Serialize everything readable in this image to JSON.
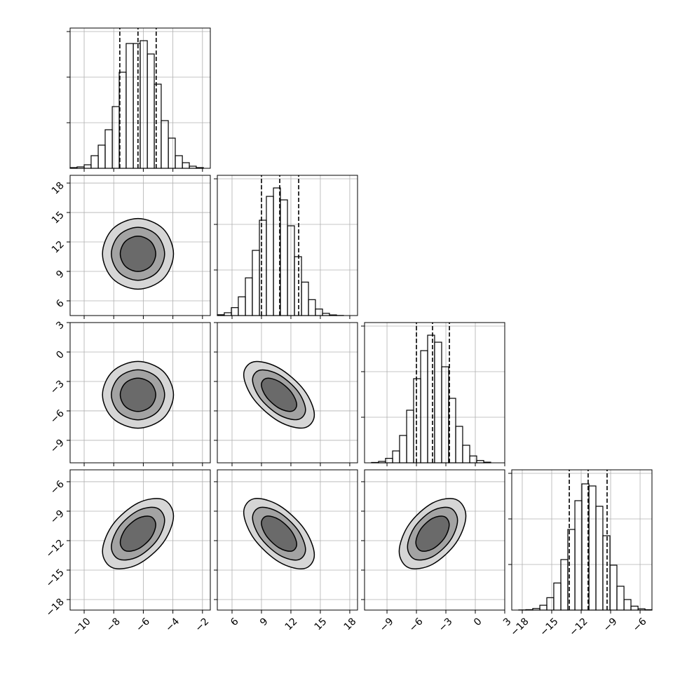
{
  "chart_data": [
    {
      "type": "histogram",
      "xlim": [
        -10.95,
        -1.47
      ],
      "xticks": [
        -10,
        -8,
        -6,
        -4,
        -2
      ],
      "ylim": [
        0,
        3077
      ],
      "yticks": [
        1000,
        2000,
        3000
      ],
      "grid": true,
      "bins": [
        -10.95,
        -10.48,
        -10.0,
        -9.53,
        -9.05,
        -8.58,
        -8.1,
        -7.63,
        -7.16,
        -6.68,
        -6.21,
        -5.73,
        -5.26,
        -4.79,
        -4.31,
        -3.84,
        -3.36,
        -2.89,
        -2.42,
        -1.94,
        -1.47
      ],
      "counts": [
        15,
        31,
        77,
        277,
        508,
        846,
        1354,
        2108,
        2738,
        2738,
        2800,
        2508,
        1846,
        1046,
        662,
        277,
        123,
        46,
        15,
        0
      ],
      "quantiles": [
        -7.59,
        -6.36,
        -5.13
      ]
    },
    {
      "type": "contour",
      "xlim": [
        -10.95,
        -1.47
      ],
      "xticks": [
        -10,
        -8,
        -6,
        -4,
        -2
      ],
      "ylim": [
        4.5,
        18.79
      ],
      "yticks": [
        6,
        9,
        12,
        15,
        18
      ],
      "grid": true,
      "contours": [
        {
          "x": [
            -3.96,
            -4.66,
            -6.36,
            -8.06,
            -8.76,
            -8.06,
            -6.36,
            -4.66
          ],
          "y": [
            10.79,
            13.34,
            14.39,
            13.34,
            10.79,
            8.24,
            7.19,
            8.24
          ]
        },
        {
          "x": [
            -4.56,
            -5.09,
            -6.36,
            -7.63,
            -8.16,
            -7.63,
            -6.36,
            -5.09
          ],
          "y": [
            10.79,
            12.7,
            13.49,
            12.7,
            10.79,
            8.88,
            8.09,
            8.88
          ]
        },
        {
          "x": [
            -5.16,
            -5.51,
            -6.36,
            -7.21,
            -7.56,
            -7.21,
            -6.36,
            -5.51
          ],
          "y": [
            10.79,
            12.06,
            12.59,
            12.06,
            10.79,
            9.52,
            8.99,
            9.52
          ]
        }
      ]
    },
    {
      "type": "histogram",
      "xlim": [
        4.5,
        18.79
      ],
      "xticks": [
        6,
        9,
        12,
        15,
        18
      ],
      "ylim": [
        0,
        3077
      ],
      "yticks": [
        1000,
        2000,
        3000
      ],
      "grid": true,
      "bins": [
        4.5,
        5.21,
        5.93,
        6.64,
        7.36,
        8.07,
        8.79,
        9.5,
        10.22,
        10.93,
        11.65,
        12.36,
        13.08,
        13.79,
        14.5,
        15.22,
        15.93,
        16.65,
        17.36,
        18.08,
        18.79
      ],
      "counts": [
        18,
        62,
        174,
        411,
        827,
        1430,
        2092,
        2615,
        2800,
        2538,
        1969,
        1292,
        734,
        349,
        143,
        49,
        14,
        3,
        0,
        0
      ],
      "quantiles": [
        9.0,
        10.86,
        12.79
      ]
    },
    {
      "type": "contour",
      "xlim": [
        -10.95,
        -1.47
      ],
      "xticks": [
        -10,
        -8,
        -6,
        -4,
        -2
      ],
      "ylim": [
        -11.29,
        3.0
      ],
      "yticks": [
        {
          "value": -9,
          "label": "−9"
        },
        {
          "value": -6,
          "label": "−6"
        },
        {
          "value": -3,
          "label": "−3"
        },
        0,
        3
      ],
      "grid": true,
      "contours": [
        {
          "x": [
            -3.96,
            -4.66,
            -6.36,
            -8.06,
            -8.76,
            -8.06,
            -6.36,
            -4.66
          ],
          "y": [
            -4.36,
            -1.96,
            -0.96,
            -1.96,
            -4.36,
            -6.76,
            -7.76,
            -6.76
          ]
        },
        {
          "x": [
            -4.56,
            -5.09,
            -6.36,
            -7.63,
            -8.16,
            -7.63,
            -6.36,
            -5.09
          ],
          "y": [
            -4.36,
            -2.56,
            -1.81,
            -2.56,
            -4.36,
            -6.16,
            -6.91,
            -6.16
          ]
        },
        {
          "x": [
            -5.16,
            -5.51,
            -6.36,
            -7.21,
            -7.56,
            -7.21,
            -6.36,
            -5.51
          ],
          "y": [
            -4.36,
            -3.16,
            -2.66,
            -3.16,
            -4.36,
            -5.56,
            -6.06,
            -5.56
          ]
        }
      ]
    },
    {
      "type": "contour",
      "xlim": [
        4.5,
        18.79
      ],
      "xticks": [
        6,
        9,
        12,
        15,
        18
      ],
      "ylim": [
        -11.29,
        3.0
      ],
      "yticks": [
        -9,
        -6,
        -3,
        0,
        3
      ],
      "grid": true,
      "contours": [
        {
          "x": [
            14.39,
            13.34,
            10.79,
            8.24,
            7.19,
            8.24,
            10.79,
            13.34
          ],
          "y": [
            -6.4,
            -3.88,
            -1.64,
            -0.99,
            -2.32,
            -4.84,
            -7.08,
            -7.73
          ]
        },
        {
          "x": [
            13.49,
            12.7,
            10.79,
            8.88,
            8.09,
            8.88,
            10.79,
            12.7
          ],
          "y": [
            -5.89,
            -4.0,
            -2.32,
            -1.84,
            -2.83,
            -4.72,
            -6.4,
            -6.88
          ]
        },
        {
          "x": [
            12.59,
            12.06,
            10.79,
            9.52,
            8.99,
            9.52,
            10.79,
            12.06
          ],
          "y": [
            -5.38,
            -4.12,
            -3.0,
            -2.68,
            -3.34,
            -4.6,
            -5.72,
            -6.04
          ]
        }
      ]
    },
    {
      "type": "histogram",
      "xlim": [
        -11.29,
        3.0
      ],
      "xticks": [
        -9,
        -6,
        -3,
        0,
        3
      ],
      "ylim": [
        0,
        3077
      ],
      "yticks": [
        1000,
        2000,
        3000
      ],
      "grid": true,
      "bins": [
        -11.29,
        -10.58,
        -9.86,
        -9.15,
        -8.43,
        -7.72,
        -7.0,
        -6.29,
        -5.57,
        -4.86,
        -4.15,
        -3.43,
        -2.72,
        -2.0,
        -1.29,
        -0.57,
        0.14,
        0.86,
        1.57,
        2.29,
        3.0
      ],
      "counts": [
        0,
        8,
        31,
        98,
        261,
        600,
        1154,
        1846,
        2461,
        2800,
        2646,
        2107,
        1415,
        800,
        385,
        151,
        51,
        14,
        0,
        0
      ],
      "quantiles": [
        -6.0,
        -4.36,
        -2.64
      ]
    },
    {
      "type": "contour",
      "xlim": [
        -10.95,
        -1.47
      ],
      "xticks": [
        {
          "value": -10,
          "label": "−10"
        },
        {
          "value": -8,
          "label": "−8"
        },
        {
          "value": -6,
          "label": "−6"
        },
        {
          "value": -4,
          "label": "−4"
        },
        {
          "value": -2,
          "label": "−2"
        }
      ],
      "ylim": [
        -19.07,
        -4.79
      ],
      "yticks": [
        {
          "value": -18,
          "label": "−18"
        },
        {
          "value": -15,
          "label": "−15"
        },
        {
          "value": -12,
          "label": "−12"
        },
        {
          "value": -9,
          "label": "−9"
        },
        {
          "value": -6,
          "label": "−6"
        }
      ],
      "grid": true,
      "contours": [
        {
          "x": [
            -3.96,
            -4.66,
            -6.36,
            -8.06,
            -8.76,
            -8.06,
            -6.36,
            -4.66
          ],
          "y": [
            -9.49,
            -7.81,
            -8.17,
            -10.36,
            -13.09,
            -14.77,
            -14.41,
            -12.22
          ]
        },
        {
          "x": [
            -4.56,
            -5.09,
            -6.36,
            -7.63,
            -8.16,
            -7.63,
            -6.36,
            -5.09
          ],
          "y": [
            -9.94,
            -8.68,
            -8.95,
            -10.59,
            -12.64,
            -13.9,
            -13.63,
            -11.99
          ]
        },
        {
          "x": [
            -5.16,
            -5.51,
            -6.36,
            -7.21,
            -7.56,
            -7.21,
            -6.36,
            -5.51
          ],
          "y": [
            -10.39,
            -9.55,
            -9.73,
            -10.82,
            -12.19,
            -13.03,
            -12.85,
            -11.76
          ]
        }
      ]
    },
    {
      "type": "contour",
      "xlim": [
        4.5,
        18.79
      ],
      "xticks": [
        6,
        9,
        12,
        15,
        18
      ],
      "ylim": [
        -19.07,
        -4.79
      ],
      "yticks": [
        -18,
        -15,
        -12,
        -9,
        -6
      ],
      "grid": true,
      "contours": [
        {
          "x": [
            14.39,
            13.34,
            10.79,
            8.24,
            7.19,
            8.24,
            10.79,
            13.34
          ],
          "y": [
            -13.45,
            -10.78,
            -8.41,
            -7.73,
            -9.13,
            -11.8,
            -14.17,
            -14.85
          ]
        },
        {
          "x": [
            13.49,
            12.7,
            10.79,
            8.88,
            8.09,
            8.88,
            10.79,
            12.7
          ],
          "y": [
            -12.91,
            -10.91,
            -9.13,
            -8.62,
            -9.67,
            -11.67,
            -13.45,
            -13.96
          ]
        },
        {
          "x": [
            12.59,
            12.06,
            10.79,
            9.52,
            8.99,
            9.52,
            10.79,
            12.06
          ],
          "y": [
            -12.37,
            -11.04,
            -9.85,
            -9.51,
            -10.21,
            -11.54,
            -12.73,
            -13.07
          ]
        }
      ]
    },
    {
      "type": "contour",
      "xlim": [
        -11.29,
        3.0
      ],
      "xticks": [
        {
          "value": -9,
          "label": "−9"
        },
        {
          "value": -6,
          "label": "−6"
        },
        {
          "value": -3,
          "label": "−3"
        },
        0,
        3
      ],
      "ylim": [
        -19.07,
        -4.79
      ],
      "yticks": [
        -18,
        -15,
        -12,
        -9,
        -6
      ],
      "grid": true,
      "contours": [
        {
          "x": [
            -0.96,
            -1.96,
            -4.36,
            -6.76,
            -7.76,
            -6.76,
            -4.36,
            -1.96
          ],
          "y": [
            -9.49,
            -7.81,
            -8.17,
            -10.36,
            -13.09,
            -14.77,
            -14.41,
            -12.22
          ]
        },
        {
          "x": [
            -1.81,
            -2.56,
            -4.36,
            -6.16,
            -6.91,
            -6.16,
            -4.36,
            -2.56
          ],
          "y": [
            -9.94,
            -8.68,
            -8.95,
            -10.59,
            -12.64,
            -13.9,
            -13.63,
            -11.99
          ]
        },
        {
          "x": [
            -2.66,
            -3.16,
            -4.36,
            -5.56,
            -6.06,
            -5.56,
            -4.36,
            -3.16
          ],
          "y": [
            -10.39,
            -9.55,
            -9.73,
            -10.82,
            -12.19,
            -13.03,
            -12.85,
            -11.76
          ]
        }
      ]
    },
    {
      "type": "histogram",
      "xlim": [
        -19.07,
        -4.79
      ],
      "xticks": [
        {
          "value": -18,
          "label": "−18"
        },
        {
          "value": -15,
          "label": "−15"
        },
        {
          "value": -12,
          "label": "−12"
        },
        {
          "value": -9,
          "label": "−9"
        },
        {
          "value": -6,
          "label": "−6"
        }
      ],
      "ylim": [
        0,
        3077
      ],
      "yticks": [
        1000,
        2000,
        3000
      ],
      "grid": true,
      "bins": [
        -19.07,
        -18.36,
        -17.64,
        -16.93,
        -16.21,
        -15.5,
        -14.79,
        -14.07,
        -13.36,
        -12.64,
        -11.93,
        -11.21,
        -10.5,
        -9.79,
        -9.07,
        -8.36,
        -7.64,
        -6.93,
        -6.21,
        -5.5,
        -4.79
      ],
      "counts": [
        0,
        3,
        9,
        35,
        106,
        272,
        594,
        1108,
        1769,
        2400,
        2769,
        2723,
        2277,
        1631,
        985,
        523,
        231,
        86,
        28,
        8
      ],
      "quantiles": [
        -13.21,
        -11.29,
        -9.36
      ]
    }
  ]
}
